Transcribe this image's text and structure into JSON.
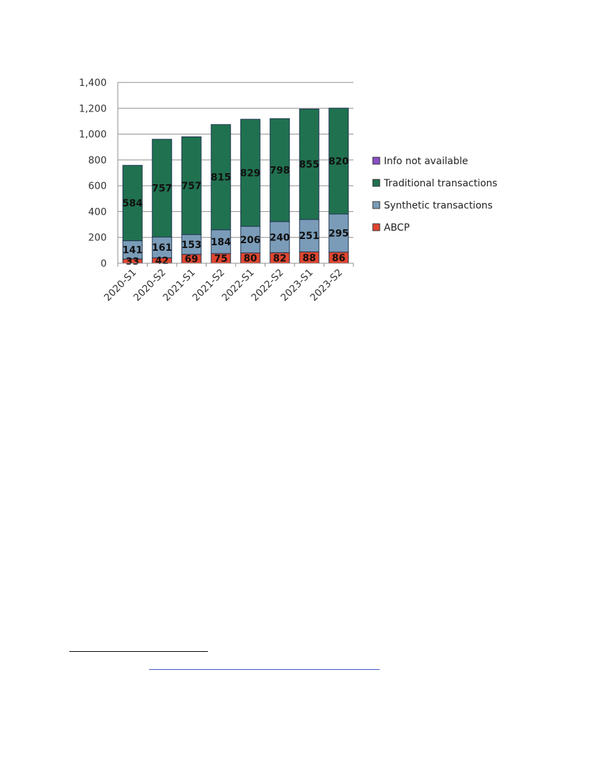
{
  "chart_data": {
    "type": "bar",
    "stacked": true,
    "categories": [
      "2020-S1",
      "2020-S2",
      "2021-S1",
      "2021-S2",
      "2022-S1",
      "2022-S2",
      "2023-S1",
      "2023-S2"
    ],
    "series": [
      {
        "name": "ABCP",
        "color": "#e0452f",
        "values": [
          33,
          42,
          69,
          75,
          80,
          82,
          88,
          86
        ]
      },
      {
        "name": "Synthetic transactions",
        "color": "#7a9cb8",
        "values": [
          141,
          161,
          153,
          184,
          206,
          240,
          251,
          295
        ]
      },
      {
        "name": "Traditional transactions",
        "color": "#20714f",
        "values": [
          584,
          757,
          757,
          815,
          829,
          798,
          855,
          820
        ]
      },
      {
        "name": "Info not available",
        "color": "#8a4fc4",
        "values": [
          0,
          0,
          0,
          0,
          0,
          0,
          0,
          0
        ]
      }
    ],
    "legend_order": [
      "Info not available",
      "Traditional transactions",
      "Synthetic transactions",
      "ABCP"
    ],
    "ylim": [
      0,
      1400
    ],
    "yticks": [
      "0",
      "200",
      "400",
      "600",
      "800",
      "1,000",
      "1,200",
      "1,400"
    ],
    "grid": true,
    "legend_position": "right",
    "title": "",
    "xlabel": "",
    "ylabel": ""
  }
}
